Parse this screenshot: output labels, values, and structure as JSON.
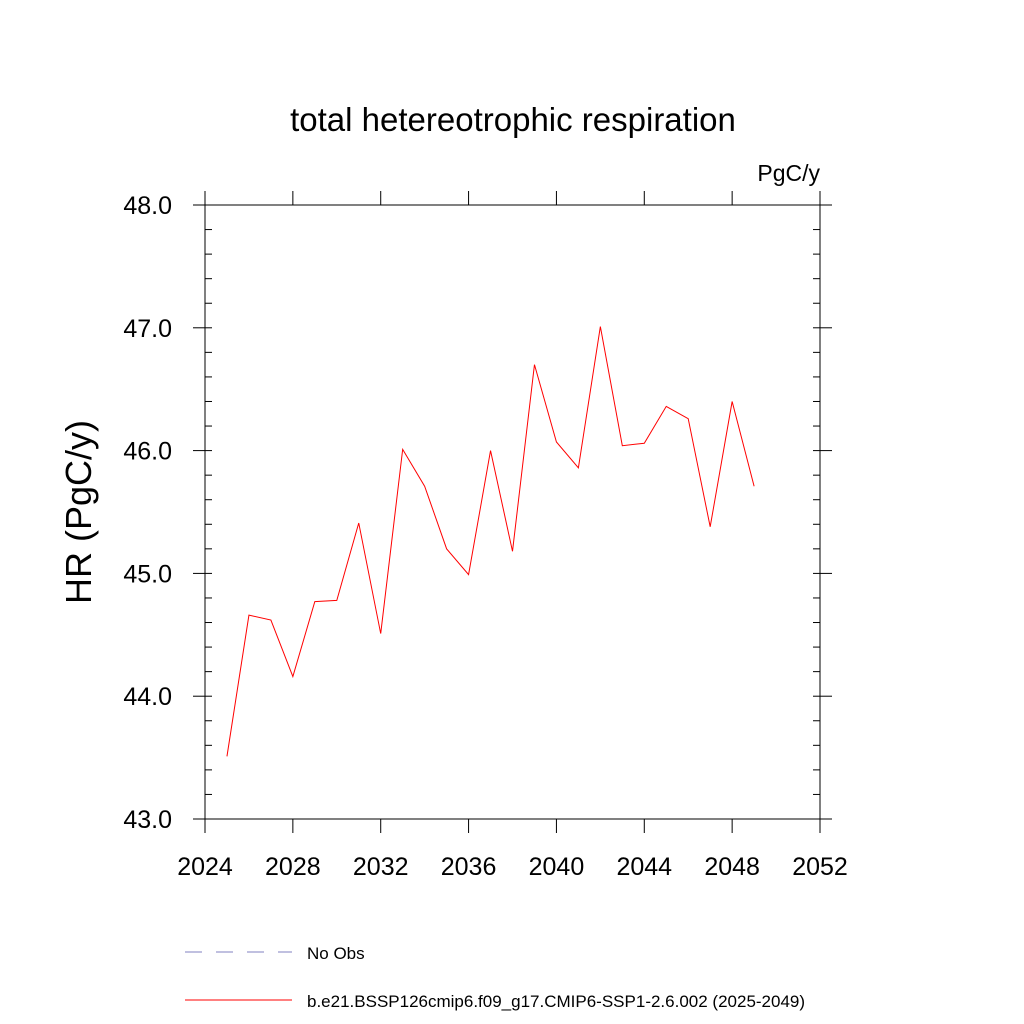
{
  "chart_data": {
    "type": "line",
    "title": "total hetereotrophic respiration",
    "units": "PgC/y",
    "xlabel": "",
    "ylabel": "HR  (PgC/y)",
    "xlim": [
      2024,
      2052
    ],
    "ylim": [
      43.0,
      48.0
    ],
    "x_ticks": [
      "2024",
      "2028",
      "2032",
      "2036",
      "2040",
      "2044",
      "2048",
      "2052"
    ],
    "y_ticks": [
      "43.0",
      "44.0",
      "45.0",
      "46.0",
      "47.0",
      "48.0"
    ],
    "x": [
      2025,
      2026,
      2027,
      2028,
      2029,
      2030,
      2031,
      2032,
      2033,
      2034,
      2035,
      2036,
      2037,
      2038,
      2039,
      2040,
      2041,
      2042,
      2043,
      2044,
      2045,
      2046,
      2047,
      2048,
      2049
    ],
    "series": [
      {
        "name": "b.e21.BSSP126cmip6.f09_g17.CMIP6-SSP1-2.6.002 (2025-2049)",
        "color": "#ff0000",
        "values": [
          43.51,
          44.66,
          44.62,
          44.16,
          44.77,
          44.78,
          45.41,
          44.51,
          46.01,
          45.71,
          45.2,
          44.99,
          46.0,
          45.18,
          46.7,
          46.07,
          45.86,
          47.01,
          46.04,
          46.06,
          46.36,
          46.26,
          45.38,
          46.4,
          45.71
        ]
      }
    ],
    "legend": {
      "placement": "bottom",
      "entries": [
        {
          "label": "No Obs",
          "style": "dashed",
          "color": "#8080c0"
        },
        {
          "label": "b.e21.BSSP126cmip6.f09_g17.CMIP6-SSP1-2.6.002 (2025-2049)",
          "style": "solid",
          "color": "#ff0000"
        }
      ]
    },
    "grid": false
  }
}
